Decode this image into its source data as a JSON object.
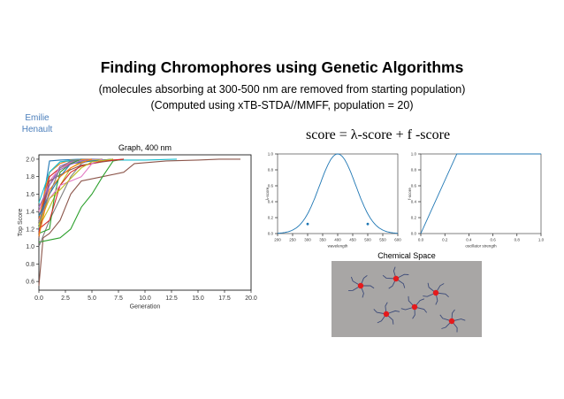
{
  "slide": {
    "title": "Finding Chromophores using Genetic Algorithms",
    "subtitle_1": "(molecules absorbing at 300-500 nm are removed from starting population)",
    "subtitle_2": "(Computed using xTB-STDA//MMFF, population = 20)",
    "author_first": "Emilie",
    "author_last": "Henault",
    "formula": "score = λ-score + f -score",
    "chemical_space_label": "Chemical Space"
  },
  "chart_data": [
    {
      "type": "line",
      "title": "Graph, 400 nm",
      "xlabel": "Generation",
      "ylabel": "Top Score",
      "xlim": [
        0,
        20
      ],
      "ylim": [
        0.5,
        2.05
      ],
      "xticks": [
        "0.0",
        "2.5",
        "5.0",
        "7.5",
        "10.0",
        "12.5",
        "15.0",
        "17.5",
        "20.0"
      ],
      "yticks": [
        "0.6",
        "0.8",
        "1.0",
        "1.2",
        "1.4",
        "1.6",
        "1.8",
        "2.0"
      ],
      "series": [
        {
          "color": "#8c564b",
          "values": [
            [
              0,
              0.55
            ],
            [
              0.4,
              1.1
            ],
            [
              1,
              1.15
            ],
            [
              2,
              1.3
            ],
            [
              3,
              1.6
            ],
            [
              4,
              1.75
            ],
            [
              6,
              1.8
            ],
            [
              8,
              1.85
            ],
            [
              9,
              1.95
            ],
            [
              12,
              1.98
            ],
            [
              15,
              1.99
            ],
            [
              17,
              2.0
            ],
            [
              19,
              2.0
            ]
          ]
        },
        {
          "color": "#1f77b4",
          "values": [
            [
              0,
              1.18
            ],
            [
              0.5,
              1.6
            ],
            [
              1,
              1.98
            ],
            [
              2,
              1.99
            ],
            [
              4,
              2.0
            ],
            [
              6,
              2.0
            ]
          ]
        },
        {
          "color": "#17becf",
          "values": [
            [
              0,
              1.2
            ],
            [
              1,
              1.85
            ],
            [
              2,
              1.97
            ],
            [
              4,
              1.99
            ],
            [
              10,
              1.99
            ],
            [
              13,
              2.0
            ]
          ]
        },
        {
          "color": "#2ca02c",
          "values": [
            [
              0,
              1.05
            ],
            [
              2,
              1.1
            ],
            [
              3,
              1.2
            ],
            [
              4,
              1.45
            ],
            [
              5,
              1.6
            ],
            [
              6,
              1.8
            ],
            [
              7,
              1.98
            ],
            [
              8,
              2.0
            ]
          ]
        },
        {
          "color": "#d62728",
          "values": [
            [
              0,
              1.15
            ],
            [
              0.5,
              1.55
            ],
            [
              1,
              1.8
            ],
            [
              2,
              1.9
            ],
            [
              3,
              1.95
            ],
            [
              5,
              1.98
            ],
            [
              7,
              2.0
            ]
          ]
        },
        {
          "color": "#9467bd",
          "values": [
            [
              0,
              1.25
            ],
            [
              1,
              1.7
            ],
            [
              2,
              1.92
            ],
            [
              3,
              1.97
            ],
            [
              5,
              2.0
            ]
          ]
        },
        {
          "color": "#e377c2",
          "values": [
            [
              0,
              1.4
            ],
            [
              1,
              1.75
            ],
            [
              2,
              1.9
            ],
            [
              3,
              1.96
            ],
            [
              4,
              1.99
            ],
            [
              6,
              2.0
            ]
          ]
        },
        {
          "color": "#7f7f7f",
          "values": [
            [
              0,
              1.0
            ],
            [
              1,
              1.3
            ],
            [
              2,
              1.55
            ],
            [
              3,
              1.8
            ],
            [
              4,
              1.95
            ],
            [
              5,
              2.0
            ]
          ]
        },
        {
          "color": "#bcbd22",
          "values": [
            [
              0,
              1.22
            ],
            [
              1,
              1.45
            ],
            [
              2,
              1.7
            ],
            [
              3,
              1.9
            ],
            [
              4,
              1.97
            ],
            [
              6,
              2.0
            ]
          ]
        },
        {
          "color": "#ff7f0e",
          "values": [
            [
              0,
              1.3
            ],
            [
              0.5,
              1.6
            ],
            [
              1,
              1.85
            ],
            [
              2,
              1.95
            ],
            [
              3,
              1.99
            ],
            [
              5,
              2.0
            ]
          ]
        },
        {
          "color": "#8c564b",
          "values": [
            [
              0,
              1.1
            ],
            [
              0.5,
              1.5
            ],
            [
              1,
              1.75
            ],
            [
              2,
              1.82
            ],
            [
              3,
              1.88
            ],
            [
              4,
              1.93
            ],
            [
              6,
              1.97
            ],
            [
              8,
              2.0
            ]
          ]
        },
        {
          "color": "#1f77b4",
          "values": [
            [
              0,
              1.35
            ],
            [
              1,
              1.6
            ],
            [
              2,
              1.8
            ],
            [
              3,
              1.95
            ],
            [
              5,
              1.98
            ],
            [
              7,
              2.0
            ]
          ]
        },
        {
          "color": "#2ca02c",
          "values": [
            [
              0,
              1.15
            ],
            [
              1,
              1.2
            ],
            [
              1.5,
              1.6
            ],
            [
              2,
              1.85
            ],
            [
              3,
              1.95
            ],
            [
              4,
              2.0
            ]
          ]
        },
        {
          "color": "#d62728",
          "values": [
            [
              0,
              1.2
            ],
            [
              1,
              1.3
            ],
            [
              2,
              1.7
            ],
            [
              3,
              1.85
            ],
            [
              4,
              1.92
            ],
            [
              6,
              1.98
            ],
            [
              8,
              2.0
            ]
          ]
        },
        {
          "color": "#9467bd",
          "values": [
            [
              0,
              1.45
            ],
            [
              1,
              1.7
            ],
            [
              2,
              1.88
            ],
            [
              3,
              1.94
            ],
            [
              4,
              1.98
            ],
            [
              5,
              2.0
            ]
          ]
        },
        {
          "color": "#e377c2",
          "values": [
            [
              0,
              1.3
            ],
            [
              1,
              1.55
            ],
            [
              2,
              1.7
            ],
            [
              3,
              1.75
            ],
            [
              4,
              1.8
            ],
            [
              5,
              1.95
            ],
            [
              6,
              2.0
            ]
          ]
        },
        {
          "color": "#17becf",
          "values": [
            [
              0,
              1.5
            ],
            [
              1,
              1.85
            ],
            [
              2,
              1.97
            ],
            [
              4,
              2.0
            ]
          ]
        },
        {
          "color": "#bcbd22",
          "values": [
            [
              0,
              1.25
            ],
            [
              1,
              1.55
            ],
            [
              2,
              1.65
            ],
            [
              3,
              1.78
            ],
            [
              4,
              1.9
            ],
            [
              5,
              1.97
            ],
            [
              7,
              2.0
            ]
          ]
        },
        {
          "color": "#ff7f0e",
          "values": [
            [
              0,
              1.12
            ],
            [
              1,
              1.65
            ],
            [
              2,
              1.8
            ],
            [
              3,
              1.9
            ],
            [
              4,
              1.96
            ],
            [
              5,
              2.0
            ]
          ]
        },
        {
          "color": "#7f7f7f",
          "values": [
            [
              0,
              1.28
            ],
            [
              1,
              1.6
            ],
            [
              2,
              1.9
            ],
            [
              3,
              1.98
            ],
            [
              4,
              2.0
            ]
          ]
        }
      ]
    },
    {
      "type": "line",
      "title": "",
      "xlabel": "wavelength",
      "ylabel": "λ-score",
      "xlim": [
        200,
        600
      ],
      "ylim": [
        0,
        1
      ],
      "xticks": [
        "200",
        "250",
        "300",
        "350",
        "400",
        "450",
        "500",
        "550",
        "600"
      ],
      "yticks": [
        "0.0",
        "0.2",
        "0.4",
        "0.6",
        "0.8",
        "1.0"
      ],
      "series": [
        {
          "color": "#1f77b4",
          "shape": "gaussian",
          "center": 400,
          "sigma": 60
        }
      ],
      "points": [
        [
          300,
          0.12
        ],
        [
          500,
          0.12
        ]
      ]
    },
    {
      "type": "line",
      "title": "",
      "xlabel": "oscillator strength",
      "ylabel": "f-score",
      "xlim": [
        0,
        1
      ],
      "ylim": [
        0,
        1
      ],
      "xticks": [
        "0.0",
        "0.2",
        "0.4",
        "0.6",
        "0.8",
        "1.0"
      ],
      "yticks": [
        "0.0",
        "0.2",
        "0.4",
        "0.6",
        "0.8",
        "1.0"
      ],
      "series": [
        {
          "color": "#1f77b4",
          "values": [
            [
              0,
              0
            ],
            [
              0.3,
              1
            ],
            [
              1,
              1
            ]
          ]
        }
      ]
    }
  ],
  "chemical_space": {
    "background": "#a8a6a5",
    "node_color": "#e41a1c",
    "branch_color": "#3c4a78"
  }
}
